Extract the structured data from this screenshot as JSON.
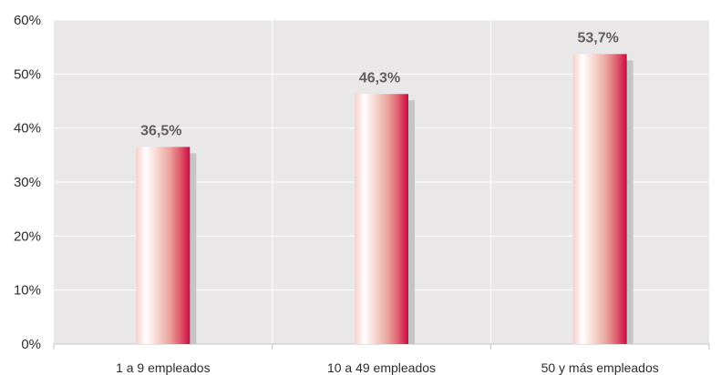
{
  "chart_data": {
    "type": "bar",
    "categories": [
      "1 a 9 empleados",
      "10 a 49 empleados",
      "50 y más empleados"
    ],
    "values": [
      36.5,
      46.3,
      53.7
    ],
    "data_labels": [
      "36,5%",
      "46,3%",
      "53,7%"
    ],
    "title": "",
    "xlabel": "",
    "ylabel": "",
    "ylim": [
      0,
      60
    ],
    "yticks": [
      0,
      10,
      20,
      30,
      40,
      50,
      60
    ],
    "ytick_labels": [
      "0%",
      "10%",
      "20%",
      "30%",
      "40%",
      "50%",
      "60%"
    ],
    "grid": true,
    "legend": "none",
    "colors": {
      "plot_background": "#e9e7e8",
      "bar_light": "#ffffff",
      "bar_mid": "#e9a7a1",
      "bar_dark": "#d10a45",
      "bar_shadow": "#c8c4c6",
      "grid": "#ffffff"
    }
  }
}
